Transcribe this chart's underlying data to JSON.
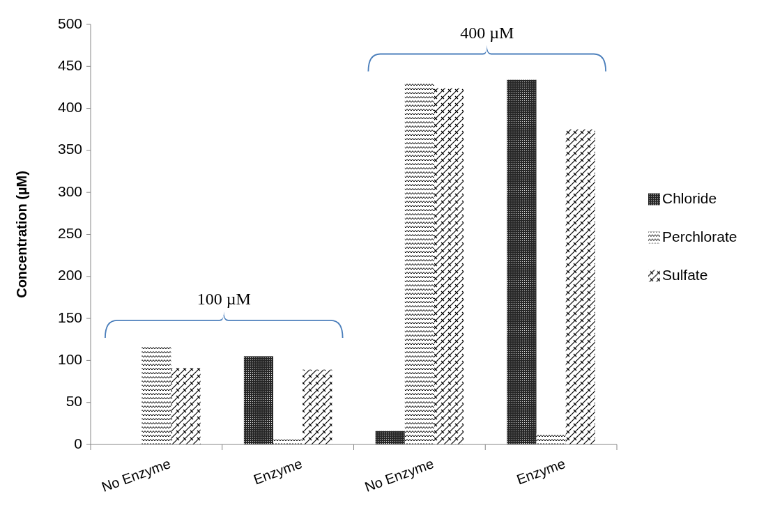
{
  "chart_data": {
    "type": "bar",
    "ylabel": "Concentration (µM)",
    "categories": [
      "No Enzyme",
      "Enzyme",
      "No Enzyme",
      "Enzyme"
    ],
    "series": [
      {
        "name": "Chloride",
        "color": "#000000",
        "values": [
          0,
          105,
          16,
          434
        ]
      },
      {
        "name": "Perchlorate",
        "color": "#000000",
        "values": [
          117,
          6,
          431,
          13
        ]
      },
      {
        "name": "Sulfate",
        "color": "#000000",
        "values": [
          91,
          89,
          424,
          375
        ]
      }
    ],
    "ylim": [
      0,
      500
    ],
    "yticks": [
      0,
      50,
      100,
      150,
      200,
      250,
      300,
      350,
      400,
      450,
      500
    ],
    "annotations": [
      "100 µM",
      "400 µM"
    ],
    "grid": false,
    "legend": "right"
  }
}
